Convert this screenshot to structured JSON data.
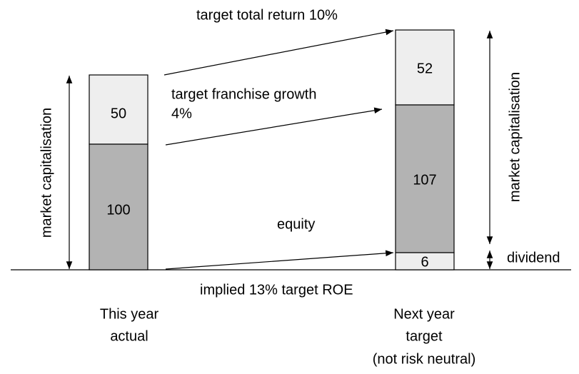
{
  "annotations": {
    "total_return": "target total return 10%",
    "franchise_growth": [
      "target franchise growth",
      "4%"
    ],
    "equity": "equity",
    "implied_roe": "implied 13% target ROE",
    "market_cap_left": "market capitalisation",
    "market_cap_right": "market capitalisation",
    "dividend": "dividend"
  },
  "bars": [
    {
      "caption": [
        "This year",
        "actual"
      ],
      "segments": [
        50,
        100
      ]
    },
    {
      "caption": [
        "Next year",
        "target",
        "(not risk neutral)"
      ],
      "segments": [
        52,
        107,
        6
      ]
    }
  ]
}
